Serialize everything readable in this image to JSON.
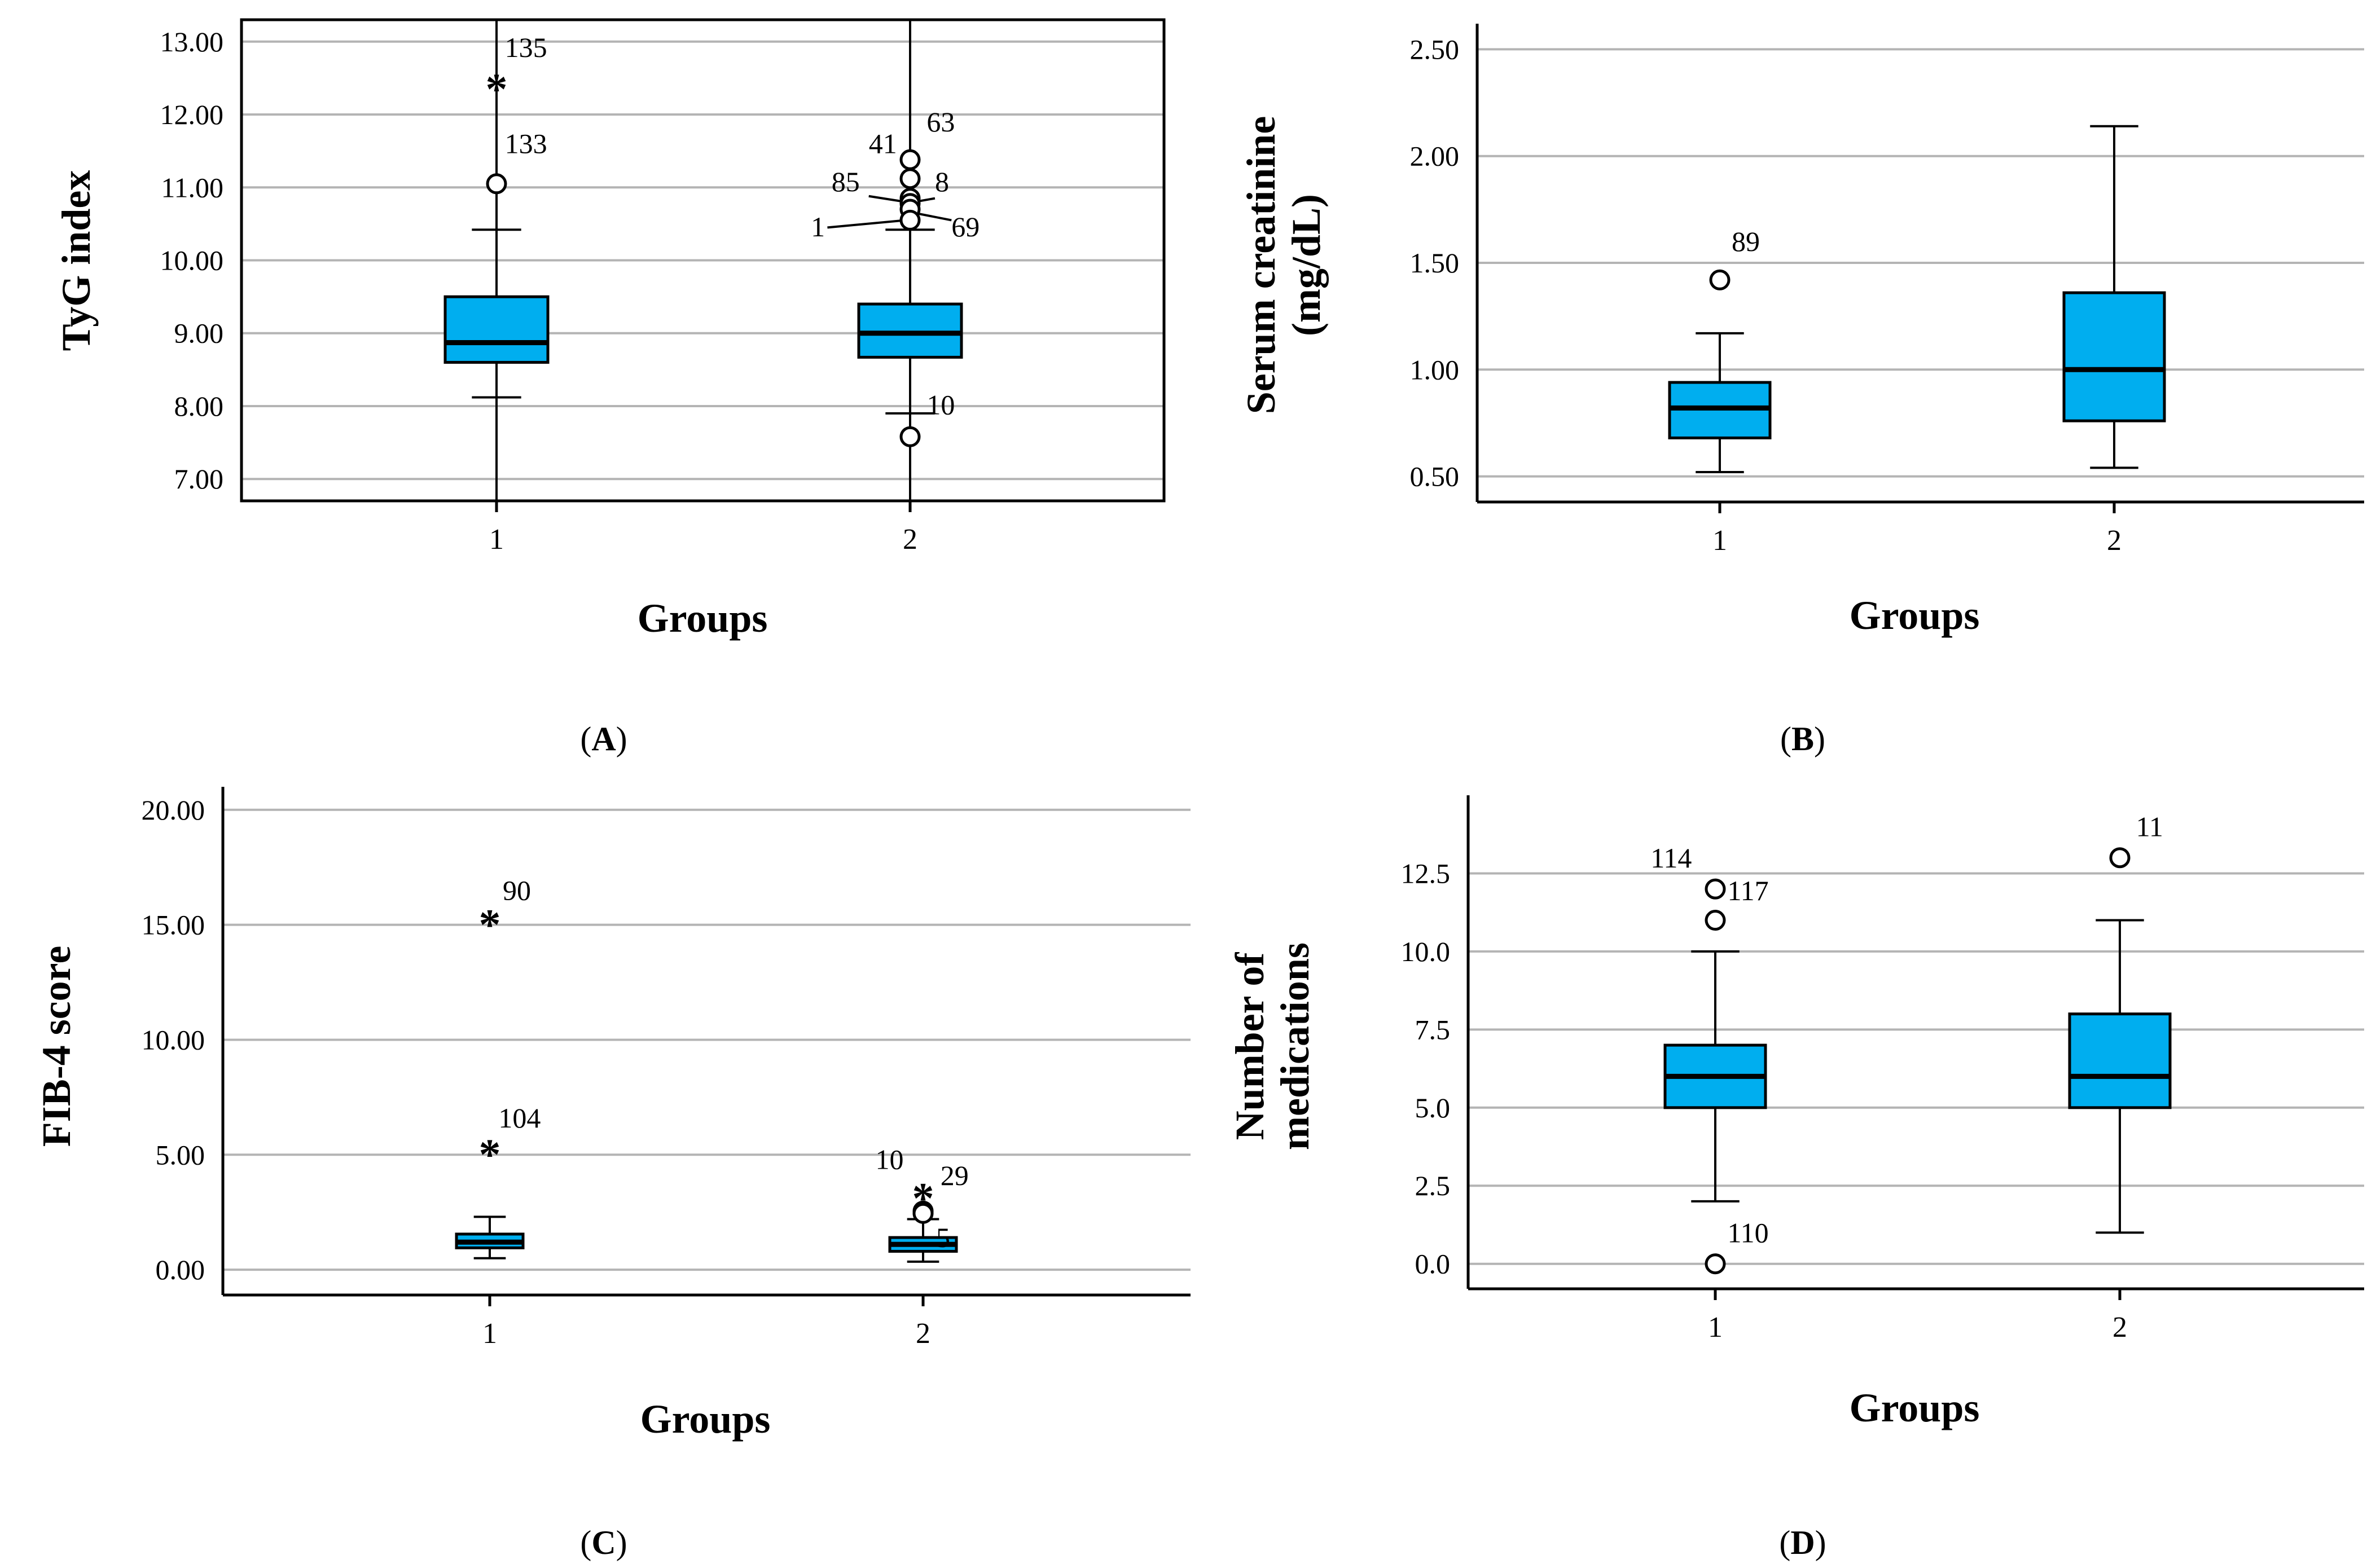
{
  "style": {
    "box_fill": "#00aeef",
    "grid_color": "#b4b4b4",
    "axis_color": "#000000"
  },
  "chart_data": [
    {
      "panel": "A",
      "panel_label": "A",
      "type": "boxplot",
      "frame": true,
      "xlabel": "Groups",
      "ylabel_lines": [
        "TyG index"
      ],
      "categories": [
        "1",
        "2"
      ],
      "ylim": [
        6.7,
        13.3
      ],
      "yticks": [
        7,
        8,
        9,
        10,
        11,
        12,
        13
      ],
      "tick_labels": [
        "7.00",
        "8.00",
        "9.00",
        "10.00",
        "11.00",
        "12.00",
        "13.00"
      ],
      "boxes": [
        {
          "q1": 8.6,
          "median": 8.87,
          "q3": 9.5,
          "whisker_low": 8.12,
          "whisker_high": 10.42,
          "line_low": 6.7,
          "line_high": 13.3
        },
        {
          "q1": 8.67,
          "median": 9.0,
          "q3": 9.4,
          "whisker_low": 7.9,
          "whisker_high": 10.42,
          "line_low": 6.7,
          "line_high": 13.3
        }
      ],
      "outliers": [
        {
          "group": 0,
          "value": 12.38,
          "marker": "star",
          "label": "135",
          "lx": 0.02,
          "ly": 12.92
        },
        {
          "group": 0,
          "value": 11.05,
          "marker": "circle",
          "label": "133",
          "lx": 0.02,
          "ly": 11.6
        },
        {
          "group": 1,
          "value": 11.38,
          "marker": "circle",
          "label": "63",
          "lx": 0.04,
          "ly": 11.9
        },
        {
          "group": 1,
          "value": 11.12,
          "marker": "circle",
          "label": "41",
          "lx": -0.1,
          "ly": 11.6
        },
        {
          "group": 1,
          "value": 10.85,
          "marker": "circle",
          "label": "8",
          "lx": 0.06,
          "ly": 11.08
        },
        {
          "group": 1,
          "value": 10.78,
          "marker": "circle",
          "label": "85",
          "lx": -0.19,
          "ly": 11.08
        },
        {
          "group": 1,
          "value": 10.7,
          "marker": "circle",
          "label": "69",
          "lx": 0.1,
          "ly": 10.46
        },
        {
          "group": 1,
          "value": 10.55,
          "marker": "circle",
          "label": "1",
          "lx": -0.24,
          "ly": 10.46
        },
        {
          "group": 1,
          "value": 7.58,
          "marker": "circle",
          "label": "10",
          "lx": 0.04,
          "ly": 8.02
        }
      ],
      "leaders": [
        {
          "x1": -0.1,
          "y1": 10.88,
          "x2": -0.01,
          "y2": 10.8
        },
        {
          "x1": 0.06,
          "y1": 10.85,
          "x2": 0.01,
          "y2": 10.8
        },
        {
          "x1": -0.2,
          "y1": 10.45,
          "x2": -0.01,
          "y2": 10.55
        },
        {
          "x1": 0.1,
          "y1": 10.55,
          "x2": 0.01,
          "y2": 10.65
        }
      ]
    },
    {
      "panel": "B",
      "panel_label": "B",
      "type": "boxplot",
      "frame": false,
      "xlabel": "Groups",
      "ylabel_lines": [
        "Serum creatinine",
        "(mg/dL)"
      ],
      "categories": [
        "1",
        "2"
      ],
      "ylim": [
        0.38,
        2.62
      ],
      "yticks": [
        0.5,
        1.0,
        1.5,
        2.0,
        2.5
      ],
      "tick_labels": [
        "0.50",
        "1.00",
        "1.50",
        "2.00",
        "2.50"
      ],
      "boxes": [
        {
          "q1": 0.68,
          "median": 0.82,
          "q3": 0.94,
          "whisker_low": 0.52,
          "whisker_high": 1.17
        },
        {
          "q1": 0.76,
          "median": 1.0,
          "q3": 1.36,
          "whisker_low": 0.54,
          "whisker_high": 2.14
        }
      ],
      "outliers": [
        {
          "group": 0,
          "value": 1.42,
          "marker": "circle",
          "label": "89",
          "lx": 0.03,
          "ly": 1.6
        }
      ],
      "leaders": []
    },
    {
      "panel": "C",
      "panel_label": "C",
      "type": "boxplot",
      "frame": false,
      "xlabel": "Groups",
      "ylabel_lines": [
        "FIB-4 score"
      ],
      "categories": [
        "1",
        "2"
      ],
      "ylim": [
        -1.1,
        21.0
      ],
      "yticks": [
        0,
        5,
        10,
        15,
        20
      ],
      "tick_labels": [
        "0.00",
        "5.00",
        "10.00",
        "15.00",
        "20.00"
      ],
      "boxes": [
        {
          "q1": 0.95,
          "median": 1.2,
          "q3": 1.55,
          "whisker_low": 0.5,
          "whisker_high": 2.3
        },
        {
          "q1": 0.8,
          "median": 1.1,
          "q3": 1.4,
          "whisker_low": 0.35,
          "whisker_high": 2.2
        }
      ],
      "outliers": [
        {
          "group": 0,
          "value": 15.1,
          "marker": "star",
          "label": "90",
          "lx": 0.03,
          "ly": 16.5
        },
        {
          "group": 0,
          "value": 5.1,
          "marker": "star",
          "label": "104",
          "lx": 0.02,
          "ly": 6.6
        },
        {
          "group": 1,
          "value": 3.2,
          "marker": "star",
          "label": "29",
          "lx": 0.04,
          "ly": 4.1
        },
        {
          "group": 1,
          "value": 2.55,
          "marker": "circle",
          "label": "10",
          "lx": -0.11,
          "ly": 4.8
        },
        {
          "group": 1,
          "value": 2.45,
          "marker": "circle",
          "label": "5",
          "lx": 0.03,
          "ly": 1.4
        }
      ],
      "leaders": []
    },
    {
      "panel": "D",
      "panel_label": "D",
      "type": "boxplot",
      "frame": false,
      "xlabel": "Groups",
      "ylabel_lines": [
        "Number of",
        "medications"
      ],
      "categories": [
        "1",
        "2"
      ],
      "ylim": [
        -0.8,
        15.0
      ],
      "yticks": [
        0,
        2.5,
        5,
        7.5,
        10,
        12.5
      ],
      "tick_labels": [
        "0.0",
        "2.5",
        "5.0",
        "7.5",
        "10.0",
        "12.5"
      ],
      "boxes": [
        {
          "q1": 5,
          "median": 6,
          "q3": 7,
          "whisker_low": 2,
          "whisker_high": 10
        },
        {
          "q1": 5,
          "median": 6,
          "q3": 8,
          "whisker_low": 1,
          "whisker_high": 11
        }
      ],
      "outliers": [
        {
          "group": 0,
          "value": 12,
          "marker": "circle",
          "label": "114",
          "lx": -0.16,
          "ly": 13.0
        },
        {
          "group": 0,
          "value": 11,
          "marker": "circle",
          "label": "117",
          "lx": 0.03,
          "ly": 11.95
        },
        {
          "group": 0,
          "value": 0,
          "marker": "circle",
          "label": "110",
          "lx": 0.03,
          "ly": 1.0
        },
        {
          "group": 1,
          "value": 13,
          "marker": "circle",
          "label": "11",
          "lx": 0.04,
          "ly": 14.0
        }
      ],
      "leaders": []
    }
  ]
}
